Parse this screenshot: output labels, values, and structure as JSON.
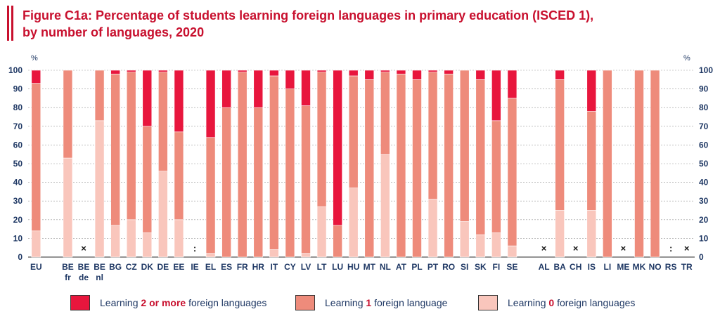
{
  "title_line1": "Figure C1a: Percentage of students learning foreign languages in primary education (ISCED 1),",
  "title_line2": "by number of languages, 2020",
  "colors": {
    "two_plus": "#e8163d",
    "one": "#ee8b7b",
    "zero": "#f9c6bc",
    "title": "#c8102e",
    "axis_text": "#1f3864"
  },
  "legend": [
    {
      "pre": "Learning ",
      "bold": "2 or more",
      "post": " foreign languages",
      "color": "#e8163d"
    },
    {
      "pre": "Learning ",
      "bold": "1",
      "post": " foreign language",
      "color": "#ee8b7b"
    },
    {
      "pre": "Learning ",
      "bold": "0",
      "post": " foreign languages",
      "color": "#f9c6bc"
    }
  ],
  "chart_data": {
    "type": "bar",
    "stacked": true,
    "title": "Figure C1a: Percentage of students learning foreign languages in primary education (ISCED 1), by number of languages, 2020",
    "ylabel_left": "%",
    "ylabel_right": "%",
    "ylim": [
      0,
      100
    ],
    "yticks": [
      0,
      10,
      20,
      30,
      40,
      50,
      60,
      70,
      80,
      90,
      100
    ],
    "grid": true,
    "legend_position": "bottom",
    "categories": [
      {
        "label": "EU",
        "zero": 14,
        "one": 79,
        "two": 7
      },
      {
        "label": "",
        "gap": true
      },
      {
        "label": "BE fr",
        "zero": 53,
        "one": 47,
        "two": 0
      },
      {
        "label": "BE de",
        "marker": "×"
      },
      {
        "label": "BE nl",
        "zero": 73,
        "one": 27,
        "two": 0
      },
      {
        "label": "BG",
        "zero": 17,
        "one": 81,
        "two": 2
      },
      {
        "label": "CZ",
        "zero": 20,
        "one": 79,
        "two": 1
      },
      {
        "label": "DK",
        "zero": 13,
        "one": 57,
        "two": 30
      },
      {
        "label": "DE",
        "zero": 46,
        "one": 53,
        "two": 1
      },
      {
        "label": "EE",
        "zero": 20,
        "one": 47,
        "two": 33
      },
      {
        "label": "IE",
        "marker": ":"
      },
      {
        "label": "EL",
        "zero": 2,
        "one": 62,
        "two": 36
      },
      {
        "label": "ES",
        "zero": 0,
        "one": 80,
        "two": 20
      },
      {
        "label": "FR",
        "zero": 0,
        "one": 99,
        "two": 1
      },
      {
        "label": "HR",
        "zero": 0,
        "one": 80,
        "two": 20
      },
      {
        "label": "IT",
        "zero": 4,
        "one": 93,
        "two": 3
      },
      {
        "label": "CY",
        "zero": 0,
        "one": 90,
        "two": 10
      },
      {
        "label": "LV",
        "zero": 2,
        "one": 79,
        "two": 19
      },
      {
        "label": "LT",
        "zero": 27,
        "one": 72,
        "two": 1
      },
      {
        "label": "LU",
        "zero": 0,
        "one": 17,
        "two": 83
      },
      {
        "label": "HU",
        "zero": 37,
        "one": 60,
        "two": 3
      },
      {
        "label": "MT",
        "zero": 0,
        "one": 95,
        "two": 5
      },
      {
        "label": "NL",
        "zero": 55,
        "one": 44,
        "two": 1
      },
      {
        "label": "AT",
        "zero": 0,
        "one": 98,
        "two": 2
      },
      {
        "label": "PL",
        "zero": 0,
        "one": 95,
        "two": 5
      },
      {
        "label": "PT",
        "zero": 31,
        "one": 68,
        "two": 1
      },
      {
        "label": "RO",
        "zero": 0,
        "one": 98,
        "two": 2
      },
      {
        "label": "SI",
        "zero": 19,
        "one": 81,
        "two": 0
      },
      {
        "label": "SK",
        "zero": 12,
        "one": 83,
        "two": 5
      },
      {
        "label": "FI",
        "zero": 13,
        "one": 60,
        "two": 27
      },
      {
        "label": "SE",
        "zero": 6,
        "one": 79,
        "two": 15
      },
      {
        "label": "",
        "gap": true
      },
      {
        "label": "AL",
        "marker": "×"
      },
      {
        "label": "BA",
        "zero": 25,
        "one": 70,
        "two": 5
      },
      {
        "label": "CH",
        "marker": "×"
      },
      {
        "label": "IS",
        "zero": 25,
        "one": 53,
        "two": 22
      },
      {
        "label": "LI",
        "zero": 0,
        "one": 100,
        "two": 0
      },
      {
        "label": "ME",
        "marker": "×"
      },
      {
        "label": "MK",
        "zero": 0,
        "one": 100,
        "two": 0
      },
      {
        "label": "NO",
        "zero": 0,
        "one": 100,
        "two": 0
      },
      {
        "label": "RS",
        "marker": ":"
      },
      {
        "label": "TR",
        "marker": "×"
      }
    ]
  }
}
